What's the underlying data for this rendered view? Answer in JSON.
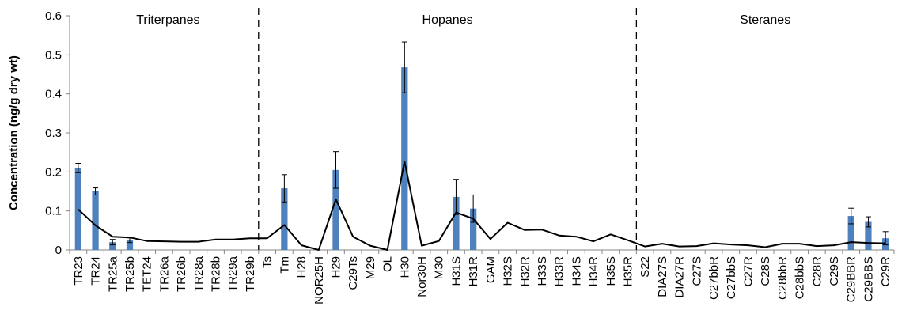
{
  "chart_data": {
    "type": "bar",
    "title": "",
    "xlabel": "",
    "ylabel": "Concentration (ng/g dry wt)",
    "ylim": [
      0,
      0.6
    ],
    "yticks": [
      "0",
      "0.1",
      "0.2",
      "0.3",
      "0.4",
      "0.5",
      "0.6"
    ],
    "grid": false,
    "sections": [
      {
        "label": "Triterpanes",
        "start": "TR23",
        "end": "TR29b"
      },
      {
        "label": "Hopanes",
        "start": "Ts",
        "end": "H35R"
      },
      {
        "label": "Steranes",
        "start": "S22",
        "end": "C29R"
      }
    ],
    "categories": [
      "TR23",
      "TR24",
      "TR25a",
      "TR25b",
      "TET24",
      "TR26a",
      "TR26b",
      "TR28a",
      "TR28b",
      "TR29a",
      "TR29b",
      "Ts",
      "Tm",
      "H28",
      "NOR25H",
      "H29",
      "C29Ts",
      "M29",
      "OL",
      "H30",
      "Nor30H",
      "M30",
      "H31S",
      "H31R",
      "GAM",
      "H32S",
      "H32R",
      "H33S",
      "H33R",
      "H34S",
      "H34R",
      "H35S",
      "H35R",
      "S22",
      "DIA27S",
      "DIA27R",
      "C27S",
      "C27bbR",
      "C27bbS",
      "C27R",
      "C28S",
      "C28bbR",
      "C28bbS",
      "C28R",
      "C29S",
      "C29BBR",
      "C29BBS",
      "C29R"
    ],
    "series": [
      {
        "type": "bar",
        "color": "#4f81bd",
        "values": [
          0.21,
          0.15,
          0.02,
          0.025,
          0,
          0,
          0,
          0,
          0,
          0,
          0,
          0,
          0.158,
          0,
          0,
          0.205,
          0,
          0,
          0,
          0.468,
          0,
          0,
          0.136,
          0.106,
          0,
          0,
          0,
          0,
          0,
          0,
          0,
          0,
          0,
          0,
          0,
          0,
          0,
          0,
          0,
          0,
          0,
          0,
          0,
          0,
          0,
          0.087,
          0.072,
          0.03
        ],
        "errors": [
          0.012,
          0.009,
          0.007,
          0.006,
          0,
          0,
          0,
          0,
          0,
          0,
          0,
          0,
          0.035,
          0,
          0,
          0.047,
          0,
          0,
          0,
          0.065,
          0,
          0,
          0.045,
          0.035,
          0,
          0,
          0,
          0,
          0,
          0,
          0,
          0,
          0,
          0,
          0,
          0,
          0,
          0,
          0,
          0,
          0,
          0,
          0,
          0,
          0,
          0.02,
          0.013,
          0.017
        ]
      },
      {
        "type": "line",
        "color": "#000000",
        "values": [
          0.104,
          0.063,
          0.034,
          0.032,
          0.023,
          0.022,
          0.021,
          0.021,
          0.027,
          0.027,
          0.03,
          0.03,
          0.064,
          0.012,
          0,
          0.13,
          0.034,
          0.011,
          0,
          0.227,
          0.011,
          0.023,
          0.096,
          0.08,
          0.028,
          0.07,
          0.051,
          0.052,
          0.037,
          0.034,
          0.022,
          0.04,
          0.025,
          0.009,
          0.016,
          0.009,
          0.01,
          0.017,
          0.014,
          0.012,
          0.007,
          0.016,
          0.016,
          0.01,
          0.012,
          0.02,
          0.018,
          0.017
        ]
      }
    ]
  }
}
